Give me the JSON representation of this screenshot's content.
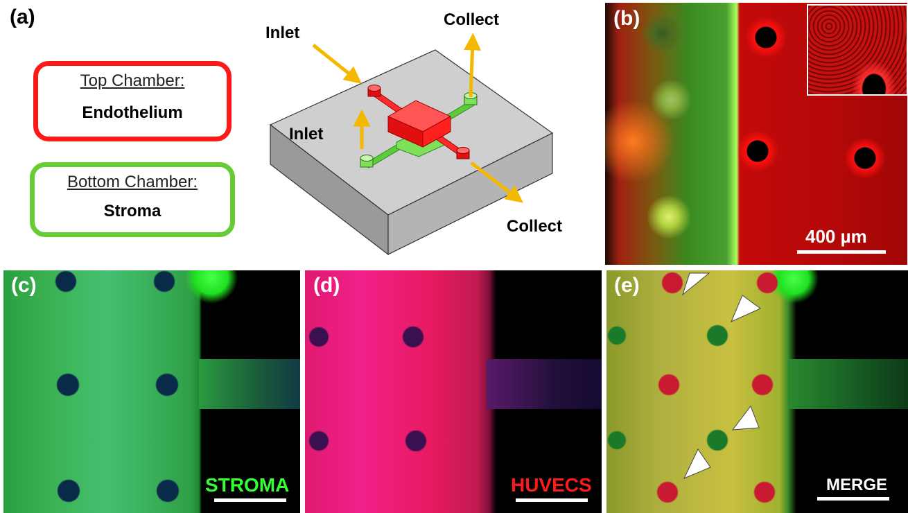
{
  "panel_a": {
    "label": "(a)",
    "top_box": {
      "title": "Top Chamber:",
      "body": "Endothelium",
      "color": "#ff1a1a"
    },
    "bottom_box": {
      "title": "Bottom Chamber:",
      "body": "Stroma",
      "color": "#66cc33"
    },
    "annotations": {
      "inlet_top": "Inlet",
      "inlet_mid": "Inlet",
      "collect_top": "Collect",
      "collect_bottom": "Collect"
    },
    "arrow_color": "#f5b800"
  },
  "panel_b": {
    "label": "(b)",
    "scale": "400 µm"
  },
  "panel_c": {
    "label": "(c)",
    "stain": "STROMA",
    "stain_color": "#33ff33"
  },
  "panel_d": {
    "label": "(d)",
    "stain": "HUVECS",
    "stain_color": "#ff1a1a"
  },
  "panel_e": {
    "label": "(e)",
    "stain": "MERGE",
    "stain_color": "#ffffff"
  }
}
